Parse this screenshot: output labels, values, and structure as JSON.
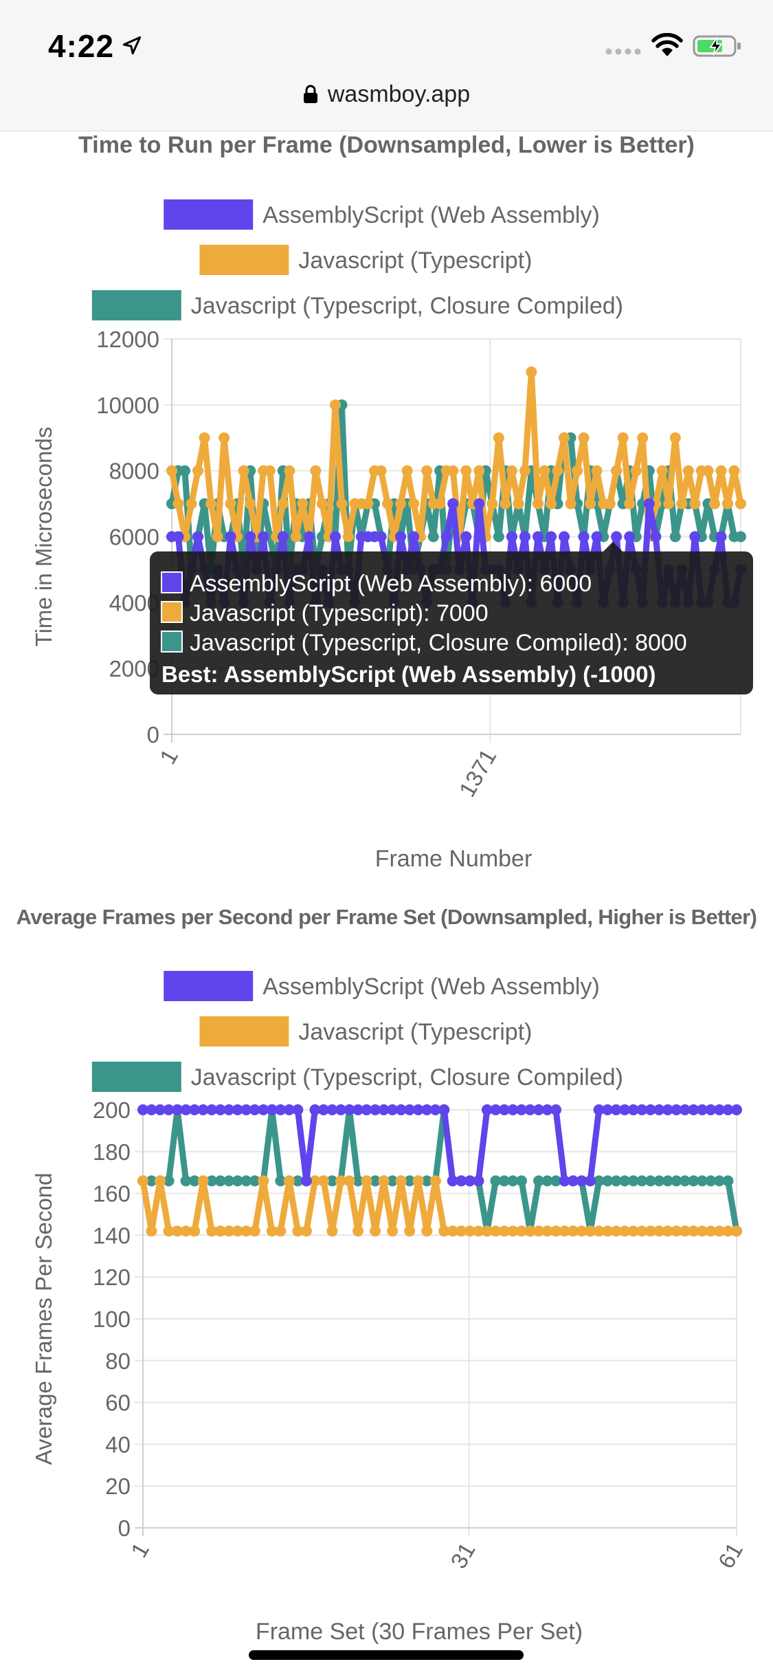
{
  "status_bar": {
    "time": "4:22",
    "url": "wasmboy.app",
    "icons": [
      "location-arrow-icon",
      "cellular-signal-icon",
      "wifi-icon",
      "battery-charging-icon",
      "lock-icon"
    ]
  },
  "colors": {
    "assemblyscript": "#5e45ec",
    "javascript": "#eeab3c",
    "closure": "#3c958a",
    "grid": "#e5e5e5",
    "axis_text": "#666666",
    "tooltip_bg": "#1c1c1c"
  },
  "chart_data": [
    {
      "type": "line",
      "title": "Time to Run per Frame (Downsampled, Lower is Better)",
      "xlabel": "Frame Number",
      "ylabel": "Time in Microseconds",
      "ylim": [
        0,
        12000
      ],
      "y_ticks": [
        "12000",
        "10000",
        "8000",
        "6000",
        "4000",
        "2000",
        "0"
      ],
      "x_ticks": [
        "1",
        "1371"
      ],
      "legend_position": "top",
      "grid": true,
      "series": [
        {
          "name": "AssemblyScript (Web Assembly)",
          "values": [
            6000,
            6000,
            4000,
            5000,
            6000,
            5000,
            4000,
            5000,
            4000,
            6000,
            5000,
            4000,
            6000,
            5000,
            6000,
            4000,
            5000,
            6000,
            4000,
            5000,
            5000,
            6000,
            4000,
            5000,
            4000,
            6000,
            5000,
            5000,
            4000,
            6000,
            6000,
            6000,
            6000,
            5000,
            4000,
            6000,
            5000,
            6000,
            5000,
            4000,
            5000,
            5000,
            6000,
            7000,
            5000,
            6000,
            4000,
            7000,
            5000,
            5000,
            5000,
            4000,
            6000,
            5000,
            6000,
            4000,
            6000,
            5000,
            6000,
            4000,
            6000,
            5000,
            4000,
            6000,
            5000,
            6000,
            4000,
            5000,
            6000,
            4000,
            6000,
            5000,
            4000,
            7000,
            6000,
            4000,
            5000,
            4000,
            5000,
            4000,
            6000,
            4000,
            4000,
            5000,
            6000,
            4000,
            4000,
            5000
          ]
        },
        {
          "name": "Javascript (Typescript)",
          "values": [
            8000,
            7000,
            6000,
            7000,
            8000,
            9000,
            7000,
            6000,
            9000,
            7000,
            6000,
            8000,
            7000,
            6000,
            8000,
            8000,
            6000,
            7000,
            8000,
            6000,
            7000,
            6000,
            8000,
            7000,
            6000,
            10000,
            7000,
            6000,
            7000,
            7000,
            7000,
            8000,
            8000,
            7000,
            6000,
            7000,
            8000,
            7000,
            6000,
            8000,
            7000,
            7000,
            8000,
            8000,
            6000,
            8000,
            7000,
            8000,
            6000,
            7000,
            9000,
            7000,
            8000,
            7000,
            8000,
            11000,
            7000,
            8000,
            7000,
            8000,
            9000,
            7000,
            8000,
            9000,
            7000,
            8000,
            7000,
            7000,
            8000,
            9000,
            7000,
            8000,
            9000,
            6000,
            7000,
            8000,
            7000,
            9000,
            7000,
            8000,
            7000,
            8000,
            8000,
            7000,
            8000,
            7000,
            8000,
            7000
          ]
        },
        {
          "name": "Javascript (Typescript, Closure Compiled)",
          "values": [
            7000,
            8000,
            8000,
            5000,
            6000,
            7000,
            5000,
            7000,
            6000,
            6000,
            7000,
            5000,
            8000,
            5000,
            7000,
            6000,
            5000,
            8000,
            5000,
            7000,
            6000,
            7000,
            5000,
            6000,
            7000,
            6000,
            10000,
            5000,
            7000,
            6000,
            7000,
            7000,
            6000,
            5000,
            7000,
            6000,
            7000,
            5000,
            6000,
            7000,
            6000,
            8000,
            5000,
            7000,
            6000,
            7000,
            7000,
            6000,
            8000,
            7000,
            6000,
            8000,
            6000,
            7000,
            6000,
            8000,
            7000,
            6000,
            8000,
            7000,
            9000,
            9000,
            7000,
            6000,
            8000,
            7000,
            6000,
            7000,
            8000,
            7000,
            8000,
            6000,
            7000,
            8000,
            6000,
            7000,
            8000,
            6000,
            7000,
            7000,
            7000,
            6000,
            7000,
            6000,
            6000,
            7000,
            6000,
            6000
          ]
        }
      ],
      "tooltip": {
        "lines": [
          "AssemblyScript (Web Assembly): 6000",
          "Javascript (Typescript): 7000",
          "Javascript (Typescript, Closure Compiled): 8000"
        ],
        "footer": "Best: AssemblyScript (Web Assembly) (-1000)"
      }
    },
    {
      "type": "line",
      "title": "Average Frames per Second per Frame Set (Downsampled, Higher is Better)",
      "xlabel": "Frame Set (30 Frames Per Set)",
      "ylabel": "Average Frames Per Second",
      "ylim": [
        0,
        200
      ],
      "y_ticks": [
        "200",
        "180",
        "160",
        "140",
        "120",
        "100",
        "80",
        "60",
        "40",
        "20",
        "0"
      ],
      "x_ticks": [
        "1",
        "31",
        "61"
      ],
      "legend_position": "top",
      "grid": true,
      "series": [
        {
          "name": "AssemblyScript (Web Assembly)",
          "values": [
            200,
            200,
            200,
            200,
            200,
            200,
            200,
            200,
            200,
            200,
            200,
            200,
            200,
            200,
            200,
            200,
            200,
            200,
            200,
            166,
            200,
            200,
            200,
            200,
            200,
            200,
            200,
            200,
            200,
            200,
            200,
            200,
            200,
            200,
            200,
            200,
            166,
            166,
            166,
            166,
            200,
            200,
            200,
            200,
            200,
            200,
            200,
            200,
            200,
            166,
            166,
            166,
            166,
            200,
            200,
            200,
            200,
            200,
            200,
            200,
            200,
            200,
            200,
            200,
            200,
            200,
            200,
            200,
            200,
            200
          ]
        },
        {
          "name": "Javascript (Typescript)",
          "values": [
            166,
            142,
            166,
            142,
            142,
            142,
            142,
            166,
            142,
            142,
            142,
            142,
            142,
            142,
            166,
            142,
            142,
            166,
            142,
            142,
            166,
            166,
            142,
            166,
            166,
            142,
            166,
            142,
            166,
            142,
            166,
            142,
            166,
            142,
            166,
            142,
            142,
            142,
            142,
            142,
            142,
            142,
            142,
            142,
            142,
            142,
            142,
            142,
            142,
            142,
            142,
            142,
            142,
            142,
            142,
            142,
            142,
            142,
            142,
            142,
            142,
            142,
            142,
            142,
            142,
            142,
            142,
            142,
            142,
            142
          ]
        },
        {
          "name": "Javascript (Typescript, Closure Compiled)",
          "values": [
            166,
            166,
            166,
            166,
            200,
            166,
            166,
            166,
            166,
            166,
            166,
            166,
            166,
            166,
            166,
            200,
            166,
            166,
            166,
            166,
            166,
            166,
            166,
            166,
            200,
            166,
            166,
            166,
            166,
            166,
            166,
            166,
            166,
            166,
            166,
            200,
            166,
            166,
            166,
            166,
            142,
            166,
            166,
            166,
            166,
            142,
            166,
            166,
            166,
            166,
            166,
            166,
            142,
            166,
            166,
            166,
            166,
            166,
            166,
            166,
            166,
            166,
            166,
            166,
            166,
            166,
            166,
            166,
            166,
            142
          ]
        }
      ]
    }
  ]
}
